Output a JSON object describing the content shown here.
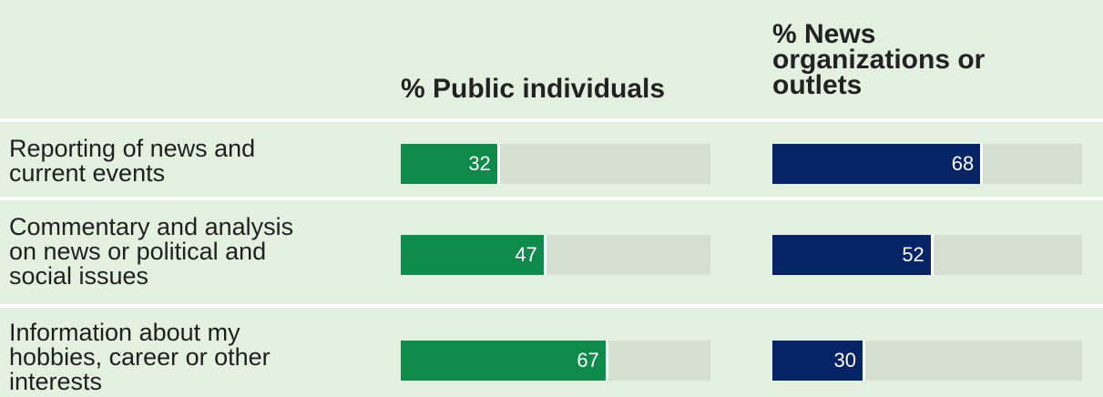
{
  "colors": {
    "background": "#e3f0df",
    "track": "#d4dfd2",
    "public": "#0e8a4a",
    "news": "#072466"
  },
  "chart_data": {
    "type": "bar",
    "orientation": "horizontal",
    "title": "",
    "xlim": [
      0,
      100
    ],
    "categories": [
      "Reporting of news and current events",
      "Commentary and analysis on news or political and social issues",
      "Information about my hobbies, career or other interests"
    ],
    "category_lines": [
      [
        "Reporting of news and",
        "current events"
      ],
      [
        "Commentary and analysis",
        "on news or political and",
        "social issues"
      ],
      [
        "Information about my",
        "hobbies, career or other",
        "interests"
      ]
    ],
    "series": [
      {
        "name": "% Public individuals",
        "values": [
          32,
          47,
          67
        ]
      },
      {
        "name": "% News organizations or outlets",
        "values": [
          68,
          52,
          30
        ]
      }
    ],
    "header_lines": {
      "public": [
        "% Public individuals"
      ],
      "news": [
        "% News",
        "organizations or",
        "outlets"
      ]
    }
  }
}
